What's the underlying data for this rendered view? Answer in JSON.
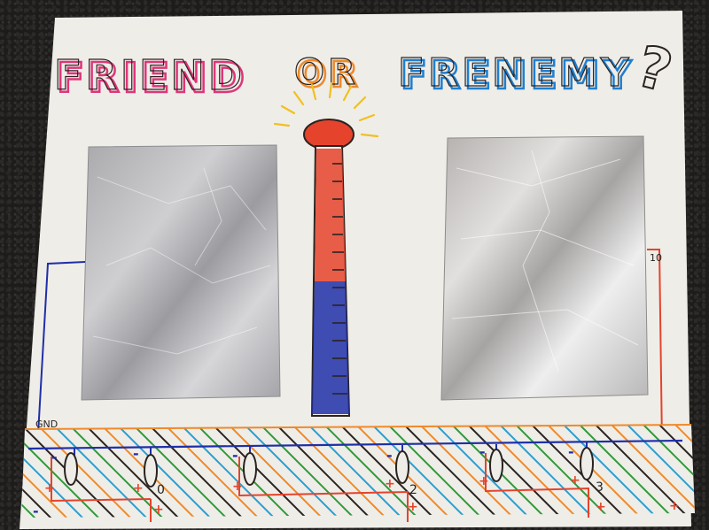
{
  "title": {
    "word1": "FRIEND",
    "word2": "OR",
    "word3": "FRENEMY",
    "mark": "?"
  },
  "labels": {
    "gnd": "GND",
    "pin_10": "10",
    "pin_0": "0",
    "pin_2": "2",
    "pin_3": "3",
    "plus": "+",
    "minus": "-"
  },
  "colors": {
    "paper": "#f1efea",
    "foil": "#b9b9bb",
    "pink": "#e0357a",
    "blue_pen": "#1f7fd0",
    "red_pen": "#e5432c",
    "navy_pen": "#1f2fa8",
    "green_pen": "#2f9a3a",
    "orange_pen": "#ef8a2a",
    "teal_pen": "#2a9fd0",
    "black_pen": "#2a2320",
    "yellow_pen": "#f0c020"
  }
}
